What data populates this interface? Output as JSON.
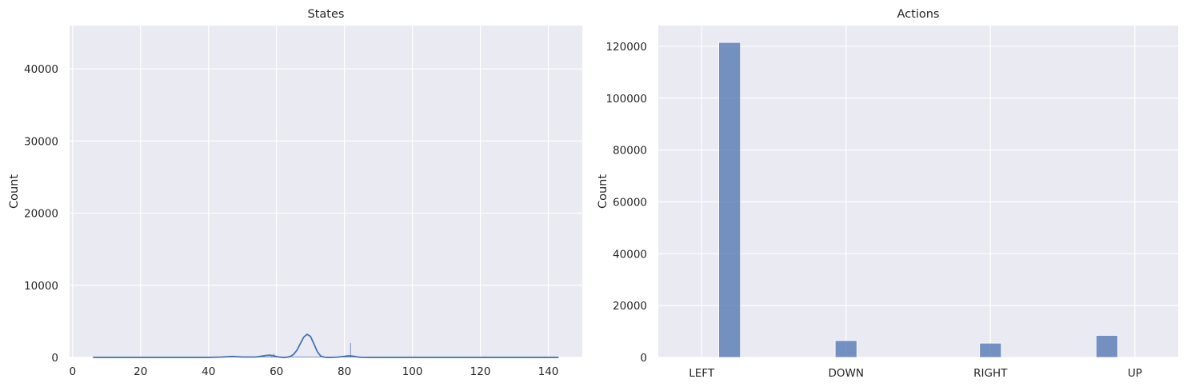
{
  "chart_data": [
    {
      "type": "histogram",
      "title": "States",
      "xlabel": "",
      "ylabel": "Count",
      "xlim": [
        -0.9,
        150
      ],
      "ylim": [
        0,
        46000
      ],
      "xticks": [
        0,
        20,
        40,
        60,
        80,
        100,
        120,
        140
      ],
      "yticks": [
        0,
        10000,
        20000,
        30000,
        40000
      ],
      "grid": true,
      "color": "#4c72b0",
      "kde": {
        "x": [
          6,
          10,
          20,
          30,
          40,
          44,
          47,
          50,
          54,
          56,
          57,
          58,
          59,
          60,
          61,
          62,
          63,
          64,
          65,
          66,
          67,
          68,
          69,
          70,
          71,
          72,
          73,
          74,
          75,
          76,
          78,
          80,
          81,
          82,
          83,
          84,
          85,
          88,
          95,
          110,
          125,
          140,
          143
        ],
        "y": [
          0,
          0,
          0,
          0,
          0,
          60,
          130,
          50,
          60,
          200,
          280,
          310,
          250,
          120,
          30,
          0,
          20,
          120,
          400,
          1000,
          1900,
          2800,
          3200,
          2900,
          1900,
          800,
          200,
          40,
          0,
          0,
          40,
          150,
          220,
          200,
          130,
          50,
          10,
          0,
          0,
          0,
          0,
          0,
          0
        ]
      },
      "spikes": [
        {
          "x": 58.6,
          "y": 300
        },
        {
          "x": 59.2,
          "y": 500
        },
        {
          "x": 81.8,
          "y": 2000
        }
      ],
      "baseline_range": [
        6,
        143
      ]
    },
    {
      "type": "bar",
      "title": "Actions",
      "xlabel": "",
      "ylabel": "Count",
      "categories": [
        "LEFT",
        "DOWN",
        "RIGHT",
        "UP"
      ],
      "values": [
        121500,
        6500,
        5500,
        8500
      ],
      "ylim": [
        0,
        128000
      ],
      "yticks": [
        0,
        20000,
        40000,
        60000,
        80000,
        100000,
        120000
      ],
      "grid": true,
      "color": "#4c72b0"
    }
  ]
}
